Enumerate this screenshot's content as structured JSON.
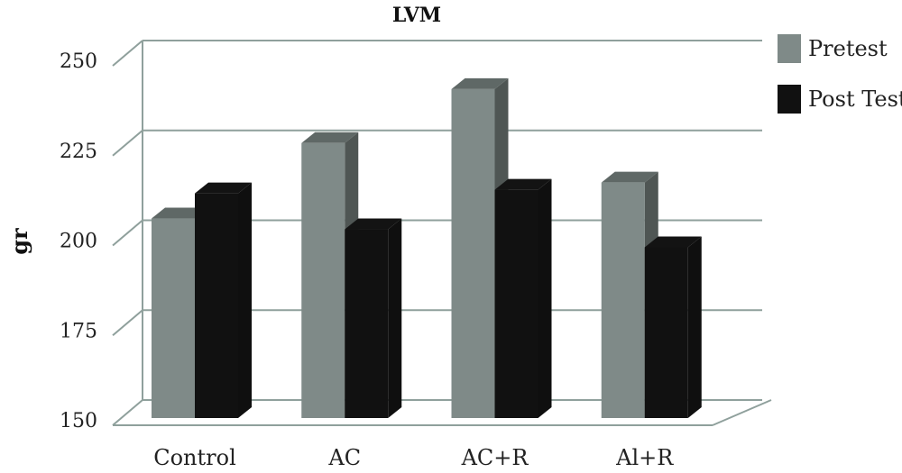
{
  "chart_data": {
    "type": "bar",
    "title": "LVM",
    "ylabel": "gr",
    "xlabel": "",
    "ylim": [
      150,
      250
    ],
    "yticks": [
      150,
      175,
      200,
      225,
      250
    ],
    "categories": [
      "Control",
      "AC",
      "AC+R",
      "Al+R"
    ],
    "series": [
      {
        "name": "Pretest",
        "values": [
          206,
          227,
          242,
          216
        ],
        "color": "#7f8a88"
      },
      {
        "name": "Post Test",
        "values": [
          213,
          203,
          214,
          198
        ],
        "color": "#111111"
      }
    ],
    "grid": true,
    "legend_position": "right",
    "style": "3d"
  }
}
